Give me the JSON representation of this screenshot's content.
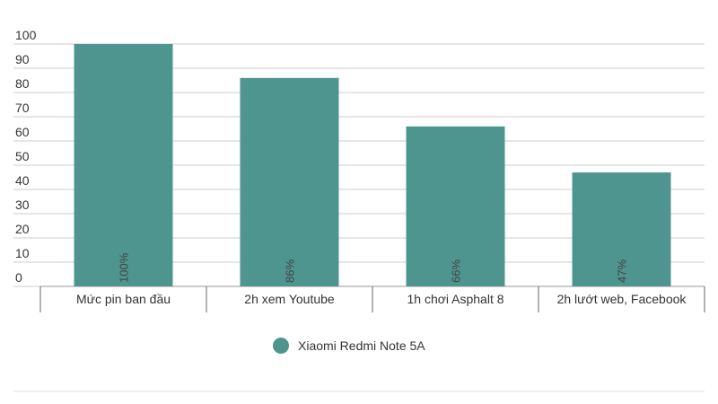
{
  "chart_data": {
    "type": "bar",
    "categories": [
      "Mức pin ban đầu",
      "2h xem Youtube",
      "1h chơi Asphalt 8",
      "2h lướt web, Facebook"
    ],
    "series": [
      {
        "name": "Xiaomi Redmi Note 5A",
        "color": "#4f958f",
        "values": [
          100,
          86,
          66,
          47
        ],
        "value_labels": [
          "100%",
          "86%",
          "66%",
          "47%"
        ]
      }
    ],
    "ylim": [
      0,
      100
    ],
    "yticks": [
      0,
      10,
      20,
      30,
      40,
      50,
      60,
      70,
      80,
      90,
      100
    ],
    "grid": true,
    "legend": "bottom"
  }
}
